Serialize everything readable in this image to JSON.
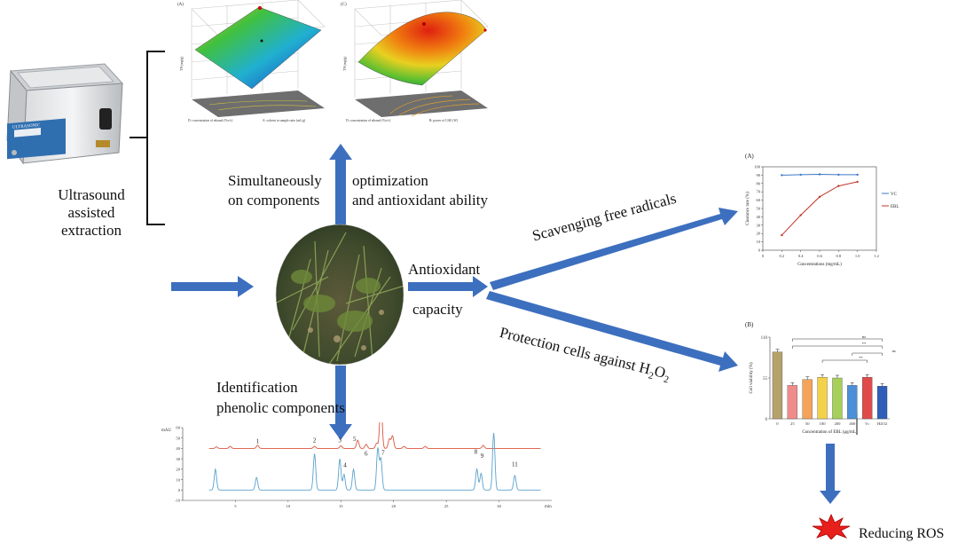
{
  "labels": {
    "ultrasound": [
      "Ultrasound",
      "assisted",
      "extraction"
    ],
    "simultaneously": "Simultaneously",
    "on_components": "on components",
    "optimization": "optimization",
    "and_antioxidant": "and antioxidant ability",
    "antioxidant": "Antioxidant",
    "capacity": "capacity",
    "scavenging": "Scavenging free radicals",
    "protection": "Protection cells against H",
    "protection_sub": "2",
    "protection_o": "O",
    "identification": "Identification",
    "phenolic": "phenolic components",
    "reducing": "Reducing ROS"
  },
  "device": {
    "panel_text": "ULTRASONIC",
    "display": "8888"
  },
  "surface_plots": {
    "left": {
      "label": "(A)",
      "zlabel": "TP (mg/g)",
      "xlabel": "D: concentration of ethanol (%v/v)",
      "ylabel": "A: solvent to sample ratio (mL/g)"
    },
    "right": {
      "label": "(C)",
      "zlabel": "TP (mg/g)",
      "xlabel": "D: concentration of ethanol (%v/v)",
      "ylabel": "B: power of UAE (W)"
    }
  },
  "chart_data": [
    {
      "type": "line",
      "id": "scavenging-chart",
      "panel_label": "(A)",
      "xlabel": "Concentrations (mg/mL)",
      "ylabel": "Clearance rate (%)",
      "xlim": [
        0,
        1.2
      ],
      "ylim": [
        0,
        100
      ],
      "xticks": [
        0,
        0.2,
        0.4,
        0.6,
        0.8,
        1.0,
        1.2
      ],
      "xtick_labels": [
        "0",
        "0.2",
        "0.4",
        "0.6",
        "0.8",
        "1.0",
        "1.2"
      ],
      "yticks": [
        0,
        10,
        20,
        30,
        40,
        50,
        60,
        70,
        80,
        90,
        100
      ],
      "series": [
        {
          "name": "VC",
          "color": "#3b78c4",
          "x": [
            0.2,
            0.4,
            0.6,
            0.8,
            1.0
          ],
          "y": [
            90,
            90.5,
            91,
            90.5,
            90.5
          ]
        },
        {
          "name": "EBL",
          "color": "#c0392b",
          "x": [
            0.2,
            0.4,
            0.6,
            0.8,
            1.0
          ],
          "y": [
            18,
            42,
            64,
            77,
            82
          ]
        }
      ]
    },
    {
      "type": "bar",
      "id": "viability-chart",
      "panel_label": "(B)",
      "xlabel": "Concentration of EBL (μg/mL)",
      "ylabel": "Cell viability (%)",
      "ylim": [
        0,
        110
      ],
      "yticks": [
        0,
        55,
        110
      ],
      "categories": [
        "0",
        "25",
        "50",
        "100",
        "200",
        "400",
        "Vc",
        "H2O2"
      ],
      "values": [
        90,
        45,
        53,
        56,
        55,
        45,
        56,
        44
      ],
      "colors": [
        "#b5a26a",
        "#f08b8b",
        "#f5a35a",
        "#f3d24b",
        "#a6d05a",
        "#4a8fd8",
        "#e04a4a",
        "#2f5fb8"
      ],
      "significance": [
        "ns",
        "**",
        "ns",
        "**"
      ]
    },
    {
      "type": "line",
      "id": "chromatogram",
      "ylabel": "mAU",
      "xunit": "min",
      "xlim": [
        0,
        35
      ],
      "ylim": [
        -10,
        60
      ],
      "xticks": [
        5,
        10,
        15,
        20,
        25,
        30
      ],
      "yticks": [
        -10,
        0,
        10,
        20,
        30,
        40,
        50,
        60
      ],
      "series": [
        {
          "name": "sample",
          "color": "#d9553d",
          "offset": 40,
          "peaks": [
            [
              3.2,
              1.5
            ],
            [
              4.5,
              2
            ],
            [
              7.1,
              3
            ],
            [
              12.5,
              2
            ],
            [
              15,
              2.5
            ],
            [
              16.6,
              8
            ],
            [
              17.4,
              4
            ],
            [
              18.4,
              5
            ],
            [
              18.8,
              50
            ],
            [
              19.6,
              9
            ],
            [
              19.9,
              12
            ],
            [
              21,
              2
            ],
            [
              23,
              2
            ],
            [
              28.5,
              3
            ]
          ]
        },
        {
          "name": "standard",
          "color": "#5aa2cc",
          "offset": 0,
          "peaks": [
            [
              3.1,
              20
            ],
            [
              7,
              12
            ],
            [
              12.5,
              35
            ],
            [
              14.9,
              30
            ],
            [
              15.3,
              15
            ],
            [
              16.2,
              20
            ],
            [
              18.5,
              40
            ],
            [
              18.8,
              30
            ],
            [
              27.9,
              20
            ],
            [
              28.3,
              16
            ],
            [
              29.5,
              55
            ],
            [
              31.5,
              14
            ]
          ]
        }
      ],
      "peak_labels": [
        {
          "text": "1",
          "x": 7.1
        },
        {
          "text": "2",
          "x": 12.5
        },
        {
          "text": "3",
          "x": 14.9
        },
        {
          "text": "4",
          "x": 15.4
        },
        {
          "text": "5",
          "x": 16.3
        },
        {
          "text": "6",
          "x": 17.4
        },
        {
          "text": "7",
          "x": 19.0
        },
        {
          "text": "8",
          "x": 27.8
        },
        {
          "text": "9",
          "x": 28.4
        },
        {
          "text": "10",
          "x": 29.5
        },
        {
          "text": "11",
          "x": 31.5
        }
      ]
    }
  ]
}
